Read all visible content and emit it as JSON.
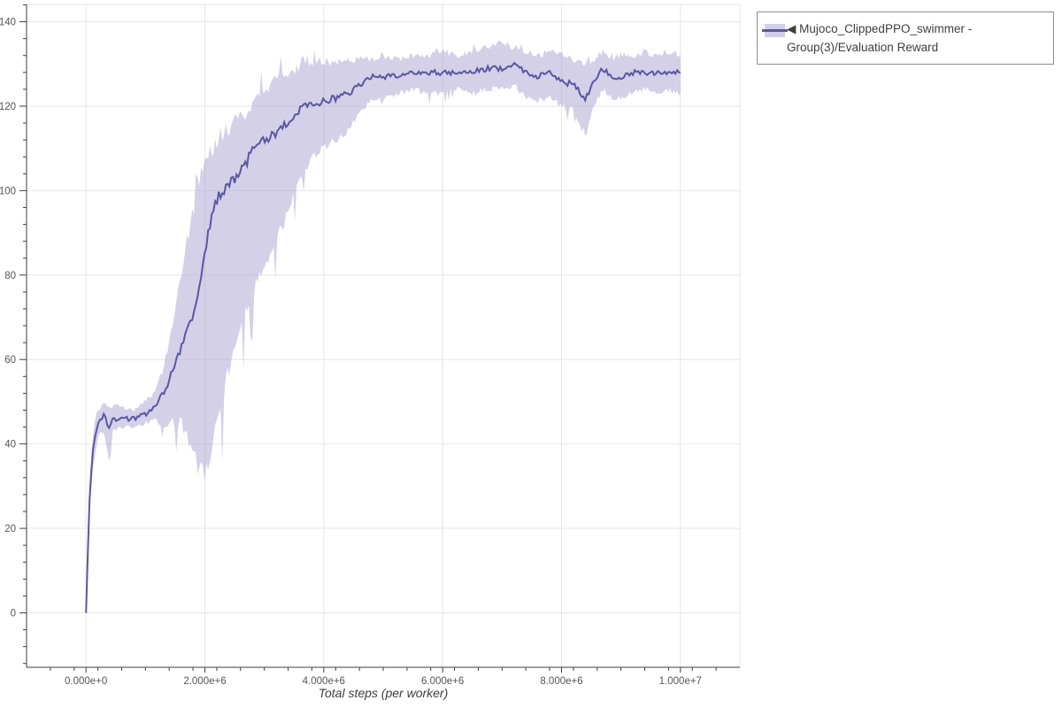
{
  "page": {
    "background": "#ffffff"
  },
  "legend": {
    "label": "◀ Mujoco_ClippedPPO_swimmer - Group(3)/Evaluation Reward",
    "border_color": "#8d8d8d",
    "swatch_band_color": "#aaa5d6",
    "swatch_line_color": "#5a57a2"
  },
  "chart_data": {
    "type": "line",
    "title": "",
    "xlabel": "Total steps (per worker)",
    "ylabel": "",
    "grid": true,
    "legend_position": "top-right",
    "x_range": [
      -1000000,
      11000000
    ],
    "y_range": [
      -12.9,
      144.1
    ],
    "x_ticks": {
      "values": [
        0,
        2000000,
        4000000,
        6000000,
        8000000,
        10000000
      ],
      "labels": [
        "0.000e+0",
        "2.000e+6",
        "4.000e+6",
        "6.000e+6",
        "8.000e+6",
        "1.000e+7"
      ]
    },
    "y_ticks": {
      "values": [
        0,
        20,
        40,
        60,
        80,
        100,
        120,
        140
      ],
      "labels": [
        "0",
        "20",
        "40",
        "60",
        "80",
        "100",
        "120",
        "140"
      ]
    },
    "x_minor_step": 400000,
    "y_minor_step": 4,
    "colors": {
      "line": "#5a57a2",
      "band": "#a7a2d2",
      "grid": "#e6e6e6",
      "outline": "#e5e5e5",
      "axis": "#3f3f3f",
      "tick_label": "#555555",
      "axis_label": "#3d3d3d"
    },
    "series": [
      {
        "name": "Mujoco_ClippedPPO_swimmer - Group(3)/Evaluation Reward",
        "x_scale": 1000000,
        "x_millions": [
          0,
          0.03,
          0.06,
          0.1,
          0.15,
          0.2,
          0.3,
          0.36,
          0.4,
          0.45,
          0.6,
          0.8,
          1.0,
          1.15,
          1.3,
          1.45,
          1.6,
          1.7,
          1.8,
          1.9,
          2.0,
          2.1,
          2.2,
          2.35,
          2.5,
          2.65,
          2.8,
          3.0,
          3.2,
          3.4,
          3.6,
          3.8,
          4.0,
          4.2,
          4.4,
          4.6,
          4.8,
          5.0,
          5.25,
          5.5,
          5.75,
          6.0,
          6.25,
          6.5,
          6.75,
          7.0,
          7.2,
          7.4,
          7.6,
          7.8,
          8.0,
          8.2,
          8.4,
          8.55,
          8.7,
          8.85,
          9.0,
          9.2,
          9.4,
          9.6,
          9.8,
          10.0
        ],
        "mean": [
          0,
          14,
          27,
          36,
          42,
          45,
          47,
          45,
          44,
          46,
          46,
          46,
          47,
          49,
          52,
          57,
          63,
          68,
          71,
          76,
          85,
          93,
          98,
          101,
          103,
          106,
          109,
          112,
          114,
          116,
          119,
          121,
          121,
          122,
          123,
          125,
          127,
          127,
          127,
          128,
          128,
          128,
          128,
          128,
          129,
          129,
          130,
          128,
          127,
          128,
          126,
          125,
          122,
          126,
          129,
          127,
          127,
          128,
          128,
          128,
          128,
          128
        ],
        "lower": [
          0,
          11,
          23,
          32,
          38,
          42,
          44,
          38,
          34,
          43,
          44,
          44,
          45,
          46,
          44,
          45,
          45,
          42,
          38,
          34,
          33,
          36,
          45,
          55,
          62,
          70,
          76,
          82,
          88,
          95,
          103,
          108,
          110,
          112,
          114,
          118,
          122,
          122,
          123,
          124,
          123,
          123,
          124,
          123,
          124,
          124,
          125,
          122,
          121,
          122,
          120,
          119,
          113,
          120,
          124,
          122,
          122,
          123,
          124,
          123,
          124,
          123
        ],
        "upper": [
          0,
          17,
          31,
          40,
          46,
          48,
          50,
          49,
          48,
          49,
          49,
          48,
          50,
          52,
          58,
          68,
          80,
          88,
          95,
          103,
          108,
          110,
          112,
          114,
          116,
          118,
          121,
          124,
          126,
          128,
          129,
          130,
          131,
          130,
          131,
          131,
          131,
          132,
          131,
          132,
          132,
          133,
          132,
          133,
          134,
          135,
          134,
          133,
          132,
          133,
          132,
          131,
          130,
          131,
          133,
          131,
          132,
          132,
          133,
          132,
          133,
          132
        ]
      }
    ]
  }
}
